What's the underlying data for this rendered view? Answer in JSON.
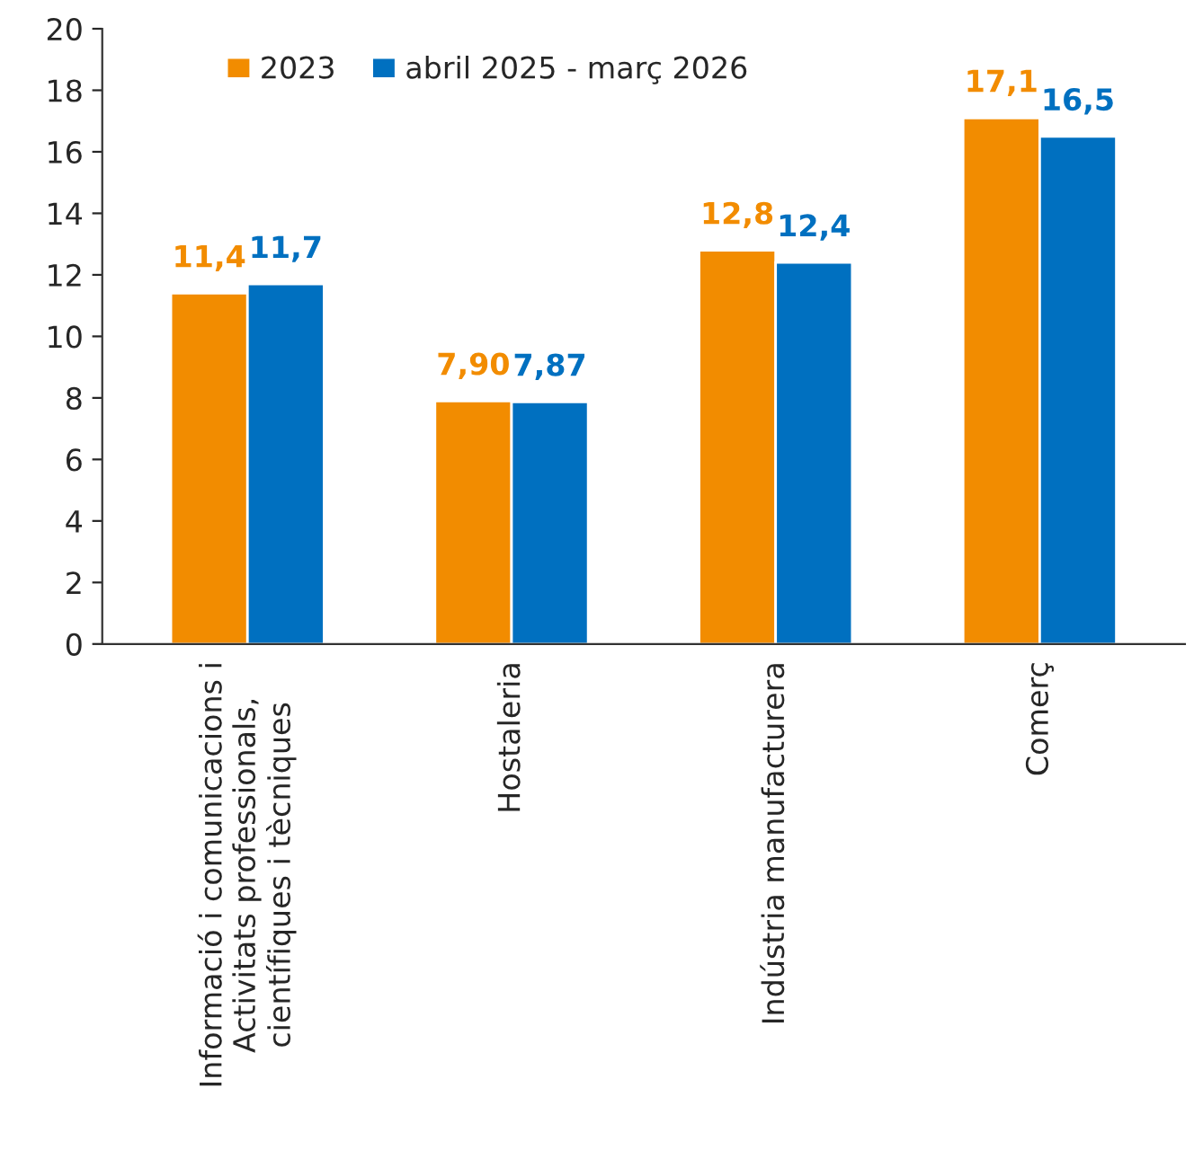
{
  "chart_data": {
    "type": "bar",
    "categories": [
      "Informació i comunicacions i\nActivitats professionals,\ncientífiques i tècniques",
      "Hostaleria",
      "Indústria manufacturera",
      "Comerç"
    ],
    "series": [
      {
        "name": "2023",
        "color": "#f28c00",
        "values": [
          11.4,
          7.9,
          12.8,
          17.1
        ],
        "value_labels": [
          "11,4",
          "7,90",
          "12,8",
          "17,1"
        ]
      },
      {
        "name": "abril 2025 - març 2026",
        "color": "#0070c0",
        "values": [
          11.7,
          7.87,
          12.4,
          16.5
        ],
        "value_labels": [
          "11,7",
          "7,87",
          "12,4",
          "16,5"
        ]
      }
    ],
    "ylim": [
      0,
      20
    ],
    "yticks": [
      0,
      2,
      4,
      6,
      8,
      10,
      12,
      14,
      16,
      18,
      20
    ],
    "grid": false,
    "legend": "top left"
  }
}
